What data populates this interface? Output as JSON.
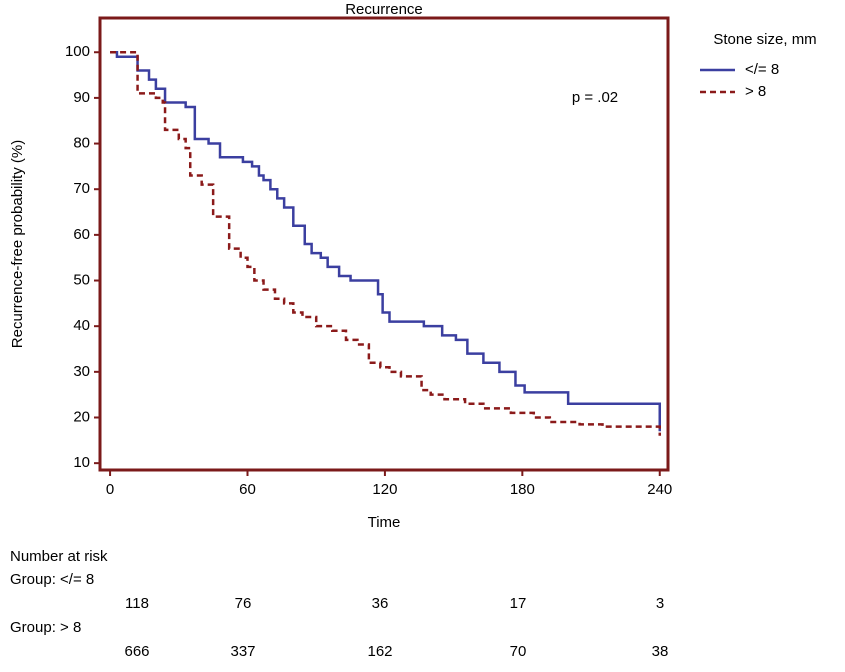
{
  "chart_data": {
    "type": "step",
    "title": "Recurrence",
    "x_label": "Time",
    "y_label": "Recurrence-free probability (%)",
    "legend_title": "Stone size, mm",
    "legend": "top-right-outside",
    "annotation": "p = .02",
    "step": "post",
    "xlim": [
      -4.4,
      243.6
    ],
    "xticks": [
      0,
      60,
      120,
      180,
      240
    ],
    "ylim": [
      8.5,
      107.5
    ],
    "yticks": [
      10,
      20,
      30,
      40,
      50,
      60,
      70,
      80,
      90,
      100
    ],
    "frame_color": "#7b1a1a",
    "series": [
      {
        "name": "</= 8",
        "color": "#3b3fa0",
        "dash": "none",
        "x": [
          0,
          3,
          12,
          17,
          20,
          24,
          33,
          37,
          43,
          48,
          58,
          62,
          65,
          67,
          70,
          73,
          76,
          80,
          85,
          88,
          92,
          95,
          100,
          105,
          117,
          119,
          122,
          137,
          145,
          151,
          156,
          163,
          170,
          177,
          181,
          200,
          240,
          240
        ],
        "values": [
          100,
          99,
          96,
          94,
          92,
          89,
          88,
          81,
          80,
          77,
          76,
          75,
          73,
          72,
          70,
          68,
          66,
          62,
          58,
          56,
          55,
          53,
          51,
          50,
          47,
          43,
          41,
          40,
          38,
          37,
          34,
          32,
          30,
          27,
          25.5,
          23,
          23,
          17
        ]
      },
      {
        "name": "> 8",
        "color": "#8b1a1a",
        "dash": "6 4",
        "x": [
          0,
          12,
          20,
          23,
          24,
          30,
          33,
          35,
          40,
          45,
          52,
          57,
          60,
          63,
          67,
          72,
          76,
          80,
          84,
          90,
          97,
          103,
          108,
          113,
          118,
          122,
          127,
          136,
          140,
          146,
          155,
          163,
          175,
          185,
          192,
          205,
          215,
          240,
          240
        ],
        "values": [
          100,
          91,
          90,
          89,
          83,
          81,
          79,
          73,
          71,
          64,
          57,
          55,
          53,
          50,
          48,
          46,
          45,
          43,
          42,
          40,
          39,
          37,
          36,
          32,
          31,
          30,
          29,
          26,
          25,
          24,
          23,
          22,
          21,
          20,
          19,
          18.5,
          18,
          18,
          16
        ]
      }
    ]
  },
  "risk_table": {
    "title": "Number at risk",
    "groups": [
      {
        "label": "Group: </= 8",
        "counts": [
          "118",
          "76",
          "36",
          "17",
          "3"
        ]
      },
      {
        "label": "Group: > 8",
        "counts": [
          "666",
          "337",
          "162",
          "70",
          "38"
        ]
      }
    ]
  }
}
